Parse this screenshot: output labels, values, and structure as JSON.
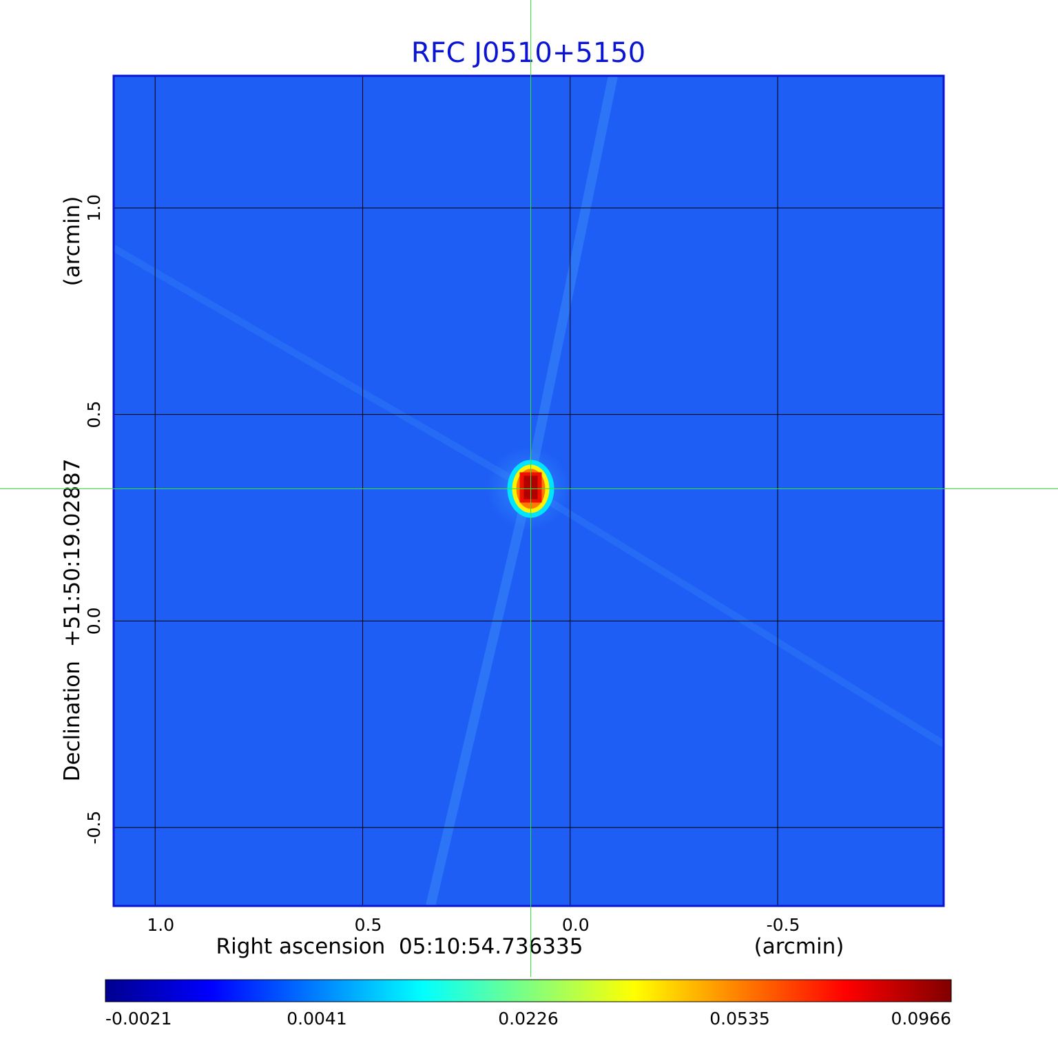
{
  "chart_data": {
    "type": "heatmap",
    "title": "RFC J0510+5150",
    "xlabel": "Right ascension  05:10:54.736335",
    "xunit": "(arcmin)",
    "ylabel": "Declination  +51:50:19.02887",
    "yunit": "(arcmin)",
    "xlim": [
      1.1,
      -0.9
    ],
    "ylim": [
      -0.69,
      1.32
    ],
    "x_ticks": [
      1.0,
      0.5,
      0.0,
      -0.5
    ],
    "x_tick_labels": [
      "1.0",
      "0.5",
      "0.0",
      "-0.5"
    ],
    "y_ticks": [
      1.0,
      0.5,
      0.0,
      -0.5
    ],
    "y_tick_labels": [
      "1.0",
      "0.5",
      "0.0",
      "-0.5"
    ],
    "grid": true,
    "crosshair": {
      "x": 0.095,
      "y": 0.32
    },
    "peak": {
      "x": 0.095,
      "y": 0.32,
      "value": 0.0966
    },
    "colormap": "jet",
    "colorbar": {
      "range": [
        -0.0021,
        0.0966
      ],
      "tick_labels": [
        "-0.0021",
        "0.0041",
        "0.0226",
        "0.0535",
        "0.0966"
      ],
      "placement": "bottom"
    },
    "colors": {
      "title": "#0a14d2",
      "frame": "#0a14d2",
      "background_field": "#1e5ef5",
      "grid": "#000000",
      "crosshair": "#33e833"
    }
  }
}
